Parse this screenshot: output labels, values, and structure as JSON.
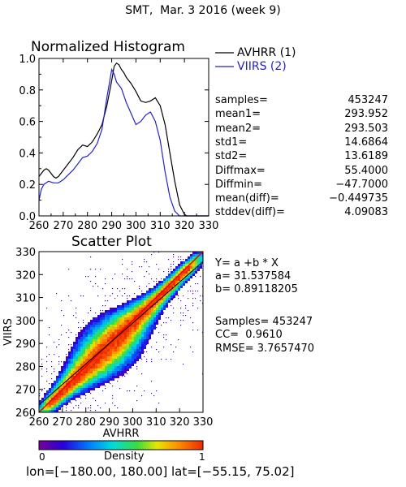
{
  "header": {
    "title": "SMT,  Mar. 3 2016 (week 9)"
  },
  "chart_data": [
    {
      "type": "line",
      "title": "Normalized Histogram",
      "xlim": [
        260,
        330
      ],
      "ylim": [
        0,
        1.0
      ],
      "x_ticks": [
        "260",
        "270",
        "280",
        "290",
        "300",
        "310",
        "320",
        "330"
      ],
      "y_ticks": [
        "0.0",
        "0.2",
        "0.4",
        "0.6",
        "0.8",
        "1.0"
      ],
      "legend_position": "top-right",
      "series": [
        {
          "name": "AVHRR (1)",
          "color": "#000000",
          "x": [
            260,
            261,
            262,
            263,
            264,
            265,
            266,
            267,
            268,
            270,
            272,
            274,
            276,
            278,
            280,
            282,
            284,
            286,
            288,
            290,
            291,
            292,
            293,
            294,
            295,
            296,
            298,
            300,
            302,
            304,
            306,
            308,
            310,
            312,
            314,
            316,
            318,
            320,
            321,
            322,
            324,
            326,
            328,
            330
          ],
          "y": [
            0.25,
            0.27,
            0.29,
            0.3,
            0.29,
            0.27,
            0.25,
            0.24,
            0.25,
            0.29,
            0.33,
            0.37,
            0.42,
            0.45,
            0.44,
            0.47,
            0.52,
            0.58,
            0.7,
            0.86,
            0.95,
            0.97,
            0.96,
            0.93,
            0.91,
            0.88,
            0.84,
            0.79,
            0.73,
            0.72,
            0.73,
            0.75,
            0.7,
            0.58,
            0.4,
            0.22,
            0.07,
            0.01,
            0.0,
            0.0,
            0.0,
            0.0,
            0.0,
            0.0
          ]
        },
        {
          "name": "VIIRS (2)",
          "color": "#2222cc",
          "x": [
            260,
            261,
            262,
            264,
            266,
            268,
            270,
            272,
            274,
            276,
            278,
            280,
            282,
            284,
            286,
            288,
            290,
            291,
            292,
            293,
            294,
            296,
            298,
            300,
            302,
            304,
            306,
            308,
            310,
            312,
            314,
            316,
            318,
            320,
            322,
            324,
            326,
            328,
            330
          ],
          "y": [
            0.1,
            0.17,
            0.2,
            0.22,
            0.21,
            0.21,
            0.23,
            0.26,
            0.29,
            0.33,
            0.37,
            0.38,
            0.41,
            0.46,
            0.55,
            0.75,
            0.93,
            0.9,
            0.85,
            0.83,
            0.81,
            0.72,
            0.65,
            0.58,
            0.6,
            0.64,
            0.66,
            0.6,
            0.48,
            0.28,
            0.12,
            0.03,
            0.0,
            0.0,
            0.0,
            0.0,
            0.0,
            0.0,
            0.0
          ]
        }
      ]
    },
    {
      "type": "heatmap",
      "title": "Scatter Plot",
      "xlabel": "AVHRR",
      "ylabel": "VIIRS",
      "xlim": [
        260,
        330
      ],
      "ylim": [
        260,
        330
      ],
      "x_ticks": [
        "260",
        "270",
        "280",
        "290",
        "300",
        "310",
        "320",
        "330"
      ],
      "y_ticks": [
        "260",
        "270",
        "280",
        "290",
        "300",
        "310",
        "320",
        "330"
      ],
      "fit_line": {
        "a": 31.537584,
        "b": 0.89118205,
        "color": "#000000"
      },
      "identity_line_color": "#ee0000",
      "colorbar": {
        "label": "Density",
        "min": "0",
        "max": "1"
      }
    }
  ],
  "stats": [
    {
      "name": "samples=",
      "value": "453247"
    },
    {
      "name": "mean1=",
      "value": "293.952"
    },
    {
      "name": "mean2=",
      "value": "293.503"
    },
    {
      "name": "std1=",
      "value": "14.6864"
    },
    {
      "name": "std2=",
      "value": "13.6189"
    },
    {
      "name": "Diffmax=",
      "value": "55.4000"
    },
    {
      "name": "Diffmin=",
      "value": "−47.7000"
    },
    {
      "name": "mean(diff)=",
      "value": "−0.449735"
    },
    {
      "name": "stddev(diff)=",
      "value": "4.09083"
    }
  ],
  "fit_text": {
    "equation": "Y= a +b * X",
    "a": "a= 31.537584",
    "b": "b= 0.89118205",
    "samples": "Samples= 453247",
    "cc": "CC=  0.9610",
    "rmse": "RMSE= 3.7657470"
  },
  "footer": {
    "range": "lon=[−180.00, 180.00] lat=[−55.15, 75.02]"
  }
}
